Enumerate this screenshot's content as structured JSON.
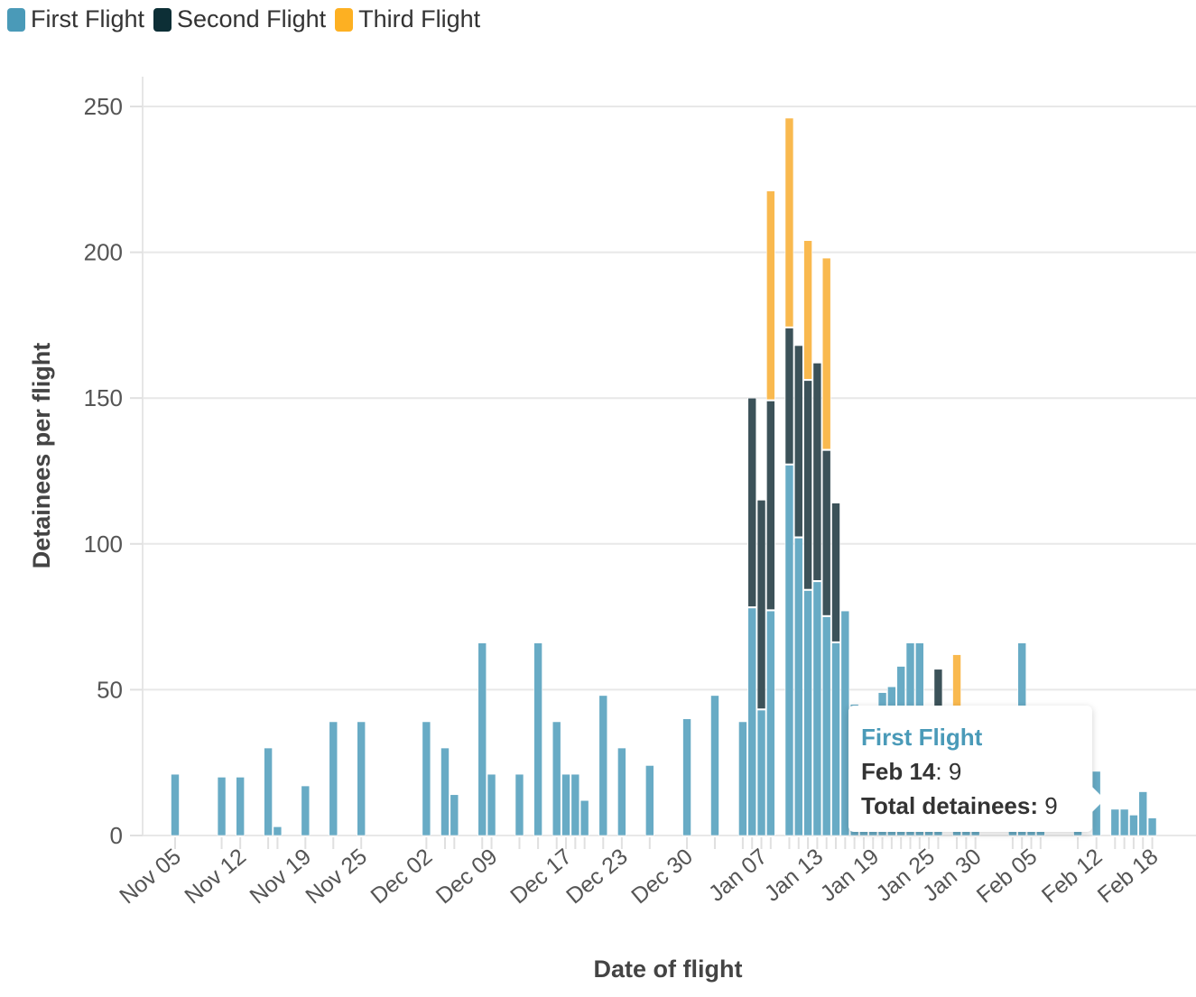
{
  "chart_data": {
    "type": "bar",
    "stacked": true,
    "xlabel": "Date of flight",
    "ylabel": "Detainees per flight",
    "ylim": [
      0,
      260
    ],
    "yticks": [
      0,
      50,
      100,
      150,
      200,
      250
    ],
    "grid": true,
    "legend_placement": "top-left",
    "series": [
      {
        "name": "First Flight",
        "color": "#68abc5",
        "legend_color": "#4a9ab8"
      },
      {
        "name": "Second Flight",
        "color": "#3c5259",
        "legend_color": "#0d2f36"
      },
      {
        "name": "Third Flight",
        "color": "#f9b94f",
        "legend_color": "#fdb022"
      }
    ],
    "xtick_labels": [
      "Nov 05",
      "Nov 12",
      "Nov 19",
      "Nov 25",
      "Dec 02",
      "Dec 09",
      "Dec 17",
      "Dec 23",
      "Dec 30",
      "Jan 07",
      "Jan 13",
      "Jan 19",
      "Jan 25",
      "Jan 30",
      "Feb 05",
      "Feb 12",
      "Feb 18"
    ],
    "data": [
      {
        "date": "Nov 05",
        "values": [
          21,
          0,
          0
        ]
      },
      {
        "date": "Nov 10",
        "values": [
          20,
          0,
          0
        ]
      },
      {
        "date": "Nov 12",
        "values": [
          20,
          0,
          0
        ]
      },
      {
        "date": "Nov 15",
        "values": [
          30,
          0,
          0
        ]
      },
      {
        "date": "Nov 16",
        "values": [
          3,
          0,
          0
        ]
      },
      {
        "date": "Nov 19",
        "values": [
          17,
          0,
          0
        ]
      },
      {
        "date": "Nov 22",
        "values": [
          39,
          0,
          0
        ]
      },
      {
        "date": "Nov 25",
        "values": [
          39,
          0,
          0
        ]
      },
      {
        "date": "Dec 02",
        "values": [
          39,
          0,
          0
        ]
      },
      {
        "date": "Dec 04",
        "values": [
          30,
          0,
          0
        ]
      },
      {
        "date": "Dec 05",
        "values": [
          14,
          0,
          0
        ]
      },
      {
        "date": "Dec 08",
        "values": [
          66,
          0,
          0
        ]
      },
      {
        "date": "Dec 09",
        "values": [
          21,
          0,
          0
        ]
      },
      {
        "date": "Dec 12",
        "values": [
          21,
          0,
          0
        ]
      },
      {
        "date": "Dec 14",
        "values": [
          66,
          0,
          0
        ]
      },
      {
        "date": "Dec 16",
        "values": [
          39,
          0,
          0
        ]
      },
      {
        "date": "Dec 17",
        "values": [
          21,
          0,
          0
        ]
      },
      {
        "date": "Dec 18",
        "values": [
          21,
          0,
          0
        ]
      },
      {
        "date": "Dec 19",
        "values": [
          12,
          0,
          0
        ]
      },
      {
        "date": "Dec 21",
        "values": [
          48,
          0,
          0
        ]
      },
      {
        "date": "Dec 23",
        "values": [
          30,
          0,
          0
        ]
      },
      {
        "date": "Dec 26",
        "values": [
          24,
          0,
          0
        ]
      },
      {
        "date": "Dec 30",
        "values": [
          40,
          0,
          0
        ]
      },
      {
        "date": "Jan 02",
        "values": [
          48,
          0,
          0
        ]
      },
      {
        "date": "Jan 05",
        "values": [
          39,
          0,
          0
        ]
      },
      {
        "date": "Jan 06",
        "values": [
          78,
          72,
          0
        ]
      },
      {
        "date": "Jan 07",
        "values": [
          43,
          72,
          0
        ]
      },
      {
        "date": "Jan 08",
        "values": [
          77,
          72,
          72
        ]
      },
      {
        "date": "Jan 10",
        "values": [
          127,
          47,
          72
        ]
      },
      {
        "date": "Jan 11",
        "values": [
          102,
          66,
          0
        ]
      },
      {
        "date": "Jan 12",
        "values": [
          84,
          72,
          48
        ]
      },
      {
        "date": "Jan 13",
        "values": [
          87,
          75,
          0
        ]
      },
      {
        "date": "Jan 14",
        "values": [
          75,
          57,
          66
        ]
      },
      {
        "date": "Jan 15",
        "values": [
          66,
          48,
          0
        ]
      },
      {
        "date": "Jan 16",
        "values": [
          77,
          0,
          0
        ]
      },
      {
        "date": "Jan 17",
        "values": [
          45,
          0,
          0
        ]
      },
      {
        "date": "Jan 18",
        "values": [
          43,
          0,
          0
        ]
      },
      {
        "date": "Jan 19",
        "values": [
          33,
          0,
          0
        ]
      },
      {
        "date": "Jan 20",
        "values": [
          49,
          0,
          0
        ]
      },
      {
        "date": "Jan 21",
        "values": [
          51,
          0,
          0
        ]
      },
      {
        "date": "Jan 22",
        "values": [
          58,
          0,
          0
        ]
      },
      {
        "date": "Jan 23",
        "values": [
          66,
          0,
          0
        ]
      },
      {
        "date": "Jan 24",
        "values": [
          66,
          0,
          0
        ]
      },
      {
        "date": "Jan 25",
        "values": [
          15,
          15,
          0
        ]
      },
      {
        "date": "Jan 26",
        "values": [
          33,
          24,
          0
        ]
      },
      {
        "date": "Jan 28",
        "values": [
          40,
          0,
          22
        ]
      },
      {
        "date": "Jan 29",
        "values": [
          20,
          20,
          0
        ]
      },
      {
        "date": "Jan 30",
        "values": [
          15,
          0,
          26
        ]
      },
      {
        "date": "Feb 03",
        "values": [
          28,
          0,
          0
        ]
      },
      {
        "date": "Feb 04",
        "values": [
          66,
          0,
          0
        ]
      },
      {
        "date": "Feb 05",
        "values": [
          28,
          0,
          0
        ]
      },
      {
        "date": "Feb 06",
        "values": [
          32,
          0,
          0
        ]
      },
      {
        "date": "Feb 10",
        "values": [
          39,
          0,
          0
        ]
      },
      {
        "date": "Feb 12",
        "values": [
          22,
          0,
          0
        ]
      },
      {
        "date": "Feb 14",
        "values": [
          9,
          0,
          0
        ]
      },
      {
        "date": "Feb 15",
        "values": [
          9,
          0,
          0
        ]
      },
      {
        "date": "Feb 16",
        "values": [
          7,
          0,
          0
        ]
      },
      {
        "date": "Feb 17",
        "values": [
          15,
          0,
          0
        ]
      },
      {
        "date": "Feb 18",
        "values": [
          6,
          0,
          0
        ]
      }
    ]
  },
  "legend": [
    {
      "label": "First Flight",
      "color": "#4a9ab8"
    },
    {
      "label": "Second Flight",
      "color": "#0d2f36"
    },
    {
      "label": "Third Flight",
      "color": "#fdb022"
    }
  ],
  "tooltip": {
    "series": "First Flight",
    "date_label": "Feb 14",
    "value": ": 9",
    "total_label": "Total detainees:",
    "total_value": " 9"
  }
}
